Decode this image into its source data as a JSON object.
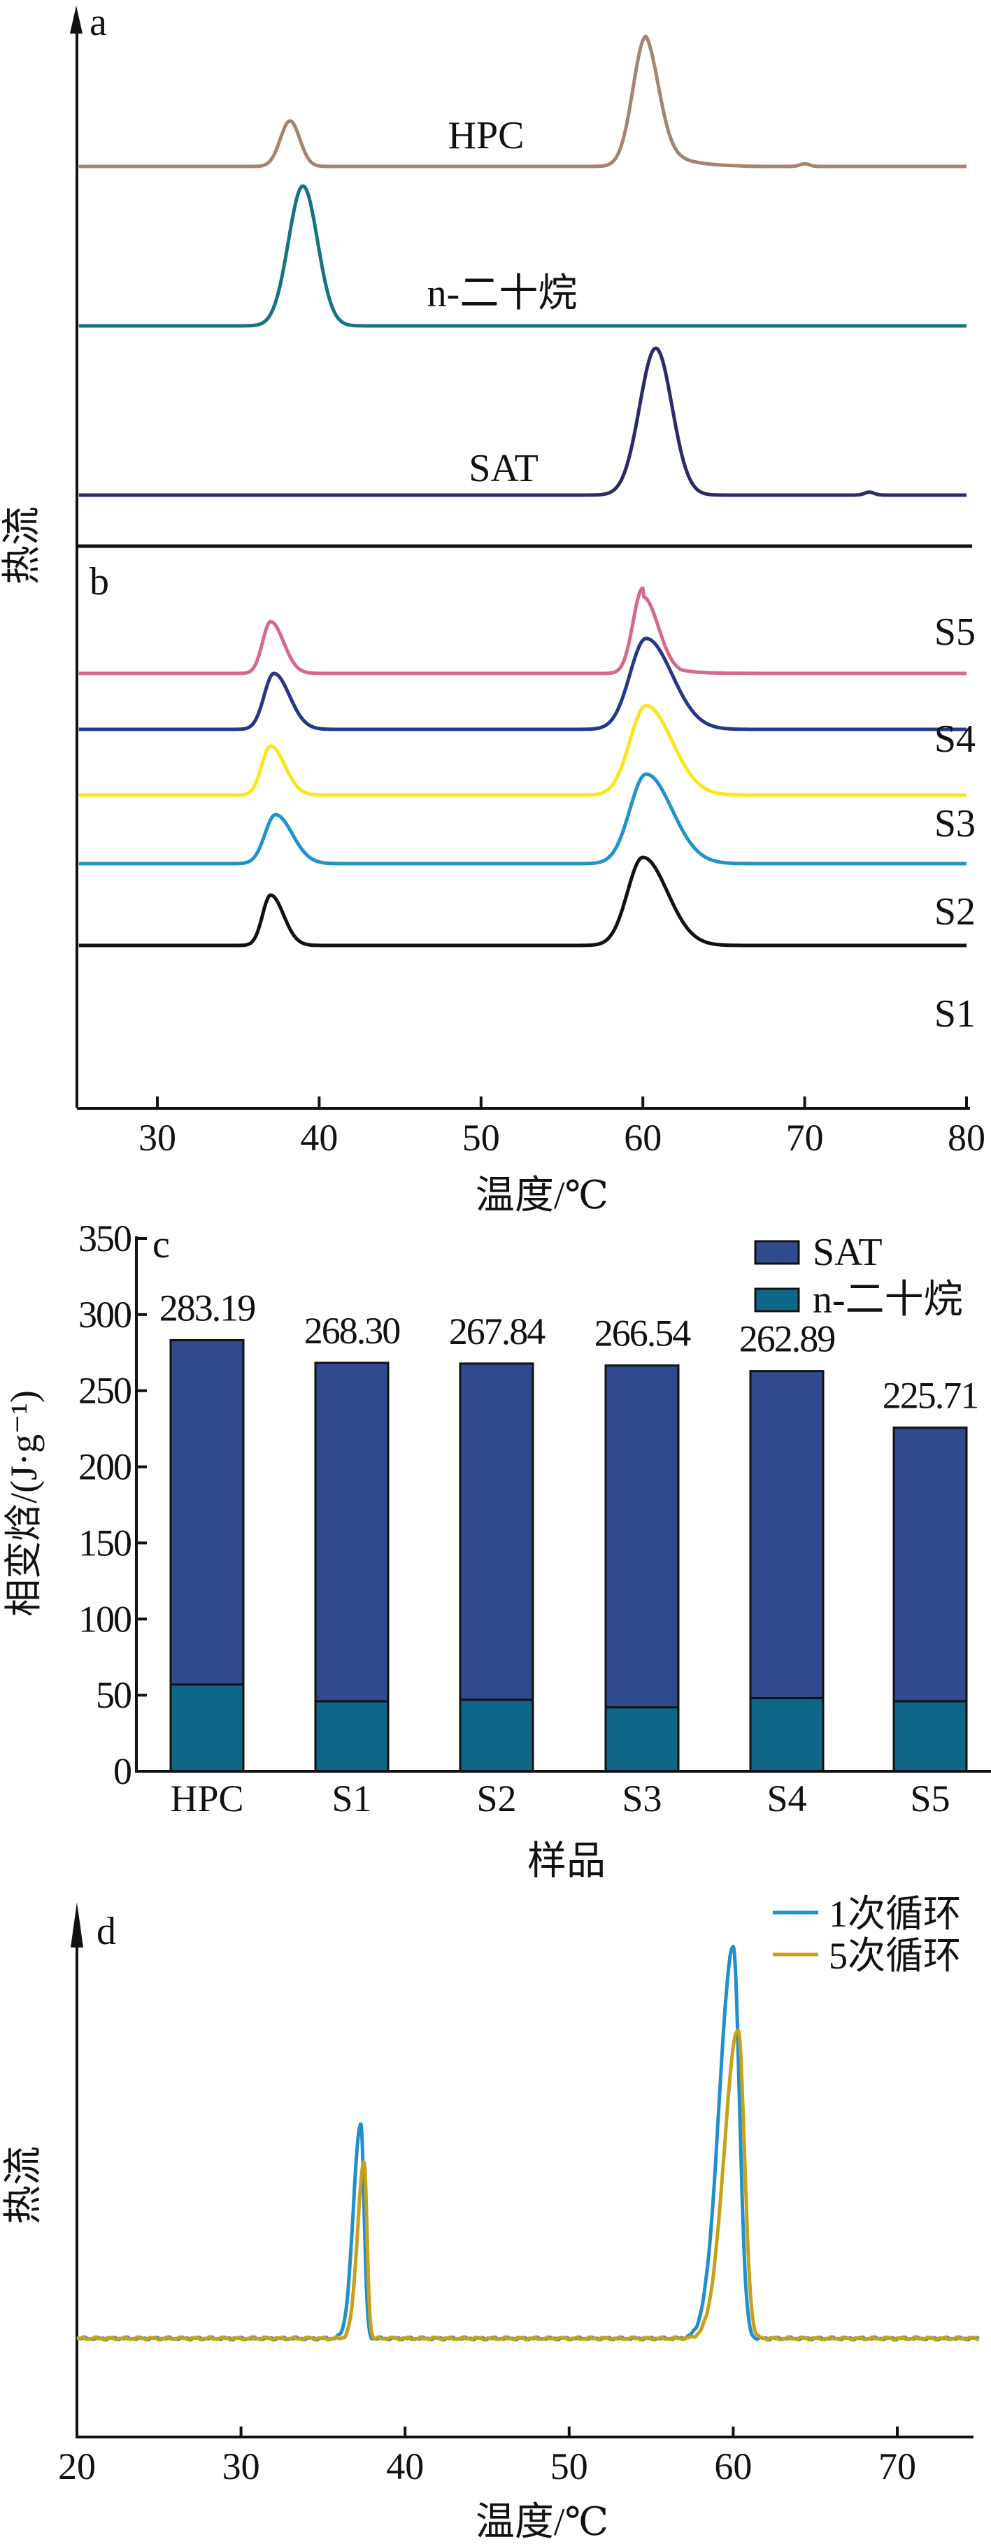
{
  "chart_data": [
    {
      "panel": "a",
      "type": "line",
      "title": "",
      "xlabel": "",
      "ylabel": "热流",
      "xlim": [
        25,
        80
      ],
      "series": [
        {
          "name": "HPC",
          "color": "#a58571",
          "peaks": [
            {
              "x": 38.2,
              "height": 0.35,
              "width": 0.6
            },
            {
              "x": 60.2,
              "height": 1.0,
              "width": 0.8,
              "tail": 1.4
            }
          ],
          "minor": [
            {
              "x": 70,
              "height": 0.02
            }
          ]
        },
        {
          "name": "n-二十烷",
          "color": "#17737f",
          "peaks": [
            {
              "x": 39.0,
              "height": 1.0,
              "width": 0.9
            }
          ],
          "minor": []
        },
        {
          "name": "SAT",
          "color": "#2b2c63",
          "peaks": [
            {
              "x": 60.8,
              "height": 1.0,
              "width": 1.0
            }
          ],
          "minor": [
            {
              "x": 74,
              "height": 0.02
            }
          ]
        }
      ]
    },
    {
      "panel": "b",
      "type": "line",
      "xlabel": "温度/℃",
      "ylabel": "热流",
      "xlim": [
        25,
        80
      ],
      "xticks": [
        30,
        40,
        50,
        60,
        70,
        80
      ],
      "series": [
        {
          "name": "S5",
          "color": "#d36a8e",
          "peaks": [
            {
              "x": 37.0,
              "height": 0.25,
              "width": 0.5
            },
            {
              "x": 60.0,
              "height": 0.85,
              "width": 0.6,
              "tail": 1.3
            }
          ]
        },
        {
          "name": "S4",
          "color": "#263787",
          "peaks": [
            {
              "x": 37.2,
              "height": 0.3,
              "width": 0.6
            },
            {
              "x": 60.2,
              "height": 1.0,
              "width": 1.0
            }
          ]
        },
        {
          "name": "S3",
          "color": "#f7e81a",
          "peaks": [
            {
              "x": 37.0,
              "height": 0.27,
              "width": 0.55
            },
            {
              "x": 60.2,
              "height": 1.0,
              "width": 1.0
            }
          ]
        },
        {
          "name": "S2",
          "color": "#1f94c9",
          "peaks": [
            {
              "x": 37.3,
              "height": 0.33,
              "width": 0.65
            },
            {
              "x": 60.2,
              "height": 1.0,
              "width": 1.0
            }
          ]
        },
        {
          "name": "S1",
          "color": "#111111",
          "peaks": [
            {
              "x": 37.0,
              "height": 0.38,
              "width": 0.5
            },
            {
              "x": 60.0,
              "height": 1.15,
              "width": 0.95
            }
          ]
        }
      ]
    },
    {
      "panel": "c",
      "type": "bar",
      "stacked": true,
      "xlabel": "样品",
      "ylabel": "相变焓/(J·g⁻¹)",
      "ylim": [
        0,
        350
      ],
      "yticks": [
        0,
        50,
        100,
        150,
        200,
        250,
        300,
        350
      ],
      "categories": [
        "HPC",
        "S1",
        "S2",
        "S3",
        "S4",
        "S5"
      ],
      "series": [
        {
          "name": "n-二十烷",
          "color": "#0f6788",
          "values": [
            57,
            46,
            47,
            42,
            48,
            46
          ]
        },
        {
          "name": "SAT",
          "color": "#2f4b8e",
          "values": [
            226.19,
            222.3,
            220.84,
            224.54,
            214.89,
            179.71
          ]
        }
      ],
      "totals": [
        283.19,
        268.3,
        267.84,
        266.54,
        262.89,
        225.71
      ],
      "total_labels": [
        "283.19",
        "268.30",
        "267.84",
        "266.54",
        "262.89",
        "225.71"
      ],
      "legend": [
        "SAT",
        "n-二十烷"
      ],
      "legend_position": "top-right"
    },
    {
      "panel": "d",
      "type": "line",
      "xlabel": "温度/℃",
      "ylabel": "热流",
      "xlim": [
        20,
        75
      ],
      "xticks": [
        20,
        30,
        40,
        50,
        60,
        70
      ],
      "legend_position": "top-right",
      "series": [
        {
          "name": "1次循环",
          "color": "#1f8fcf",
          "peaks": [
            {
              "x": 37.3,
              "height": 0.55,
              "width": 0.45
            },
            {
              "x": 60.0,
              "height": 1.0,
              "width": 0.85
            }
          ]
        },
        {
          "name": "5次循环",
          "color": "#c6a21a",
          "peaks": [
            {
              "x": 37.5,
              "height": 0.45,
              "width": 0.4
            },
            {
              "x": 60.3,
              "height": 0.79,
              "width": 0.85
            }
          ]
        }
      ]
    }
  ],
  "labels": {
    "panel_a": "a",
    "panel_b": "b",
    "panel_c": "c",
    "panel_d": "d",
    "heat_flow": "热流",
    "temperature": "温度/℃",
    "sample": "样品",
    "enthalpy": "相变焓/(J·g⁻¹)"
  }
}
